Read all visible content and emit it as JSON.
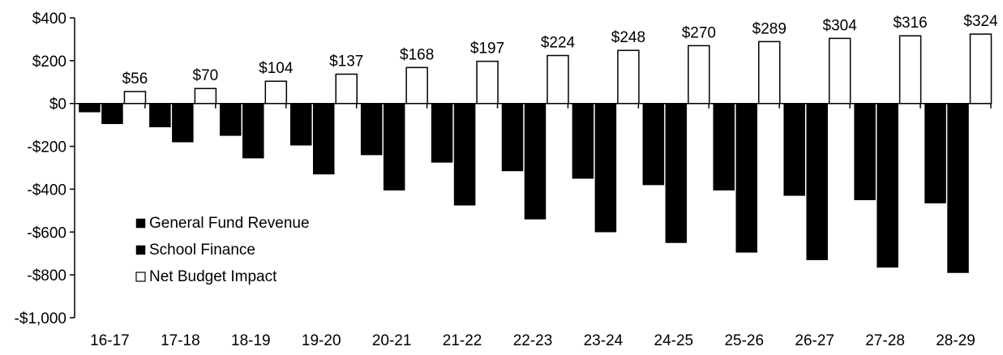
{
  "chart_data": {
    "type": "bar",
    "title": "",
    "xlabel": "",
    "ylabel": "",
    "ylim": [
      -1000,
      400
    ],
    "yticks": [
      400,
      200,
      0,
      -200,
      -400,
      -600,
      -800,
      -1000
    ],
    "ytick_labels": [
      "$400",
      "$200",
      "$0",
      "-$200",
      "-$400",
      "-$600",
      "-$800",
      "-$1,000"
    ],
    "grid": false,
    "legend_position": "bottom-left",
    "categories": [
      "16-17",
      "17-18",
      "18-19",
      "19-20",
      "20-21",
      "21-22",
      "22-23",
      "23-24",
      "24-25",
      "25-26",
      "26-27",
      "27-28",
      "28-29"
    ],
    "series": [
      {
        "name": "General Fund Revenue",
        "color": "#000000",
        "fill": "solid",
        "values": [
          -40,
          -110,
          -150,
          -195,
          -240,
          -275,
          -315,
          -350,
          -380,
          -405,
          -430,
          -450,
          -465
        ]
      },
      {
        "name": "School Finance",
        "color": "#000000",
        "fill": "solid",
        "values": [
          -95,
          -180,
          -255,
          -330,
          -405,
          -475,
          -540,
          -600,
          -650,
          -695,
          -730,
          -765,
          -790
        ]
      },
      {
        "name": "Net Budget Impact",
        "color": "#ffffff",
        "fill": "outline",
        "values": [
          56,
          70,
          104,
          137,
          168,
          197,
          224,
          248,
          270,
          289,
          304,
          316,
          324
        ],
        "data_labels": [
          "$56",
          "$70",
          "$104",
          "$137",
          "$168",
          "$197",
          "$224",
          "$248",
          "$270",
          "$289",
          "$304",
          "$316",
          "$324"
        ]
      }
    ]
  }
}
